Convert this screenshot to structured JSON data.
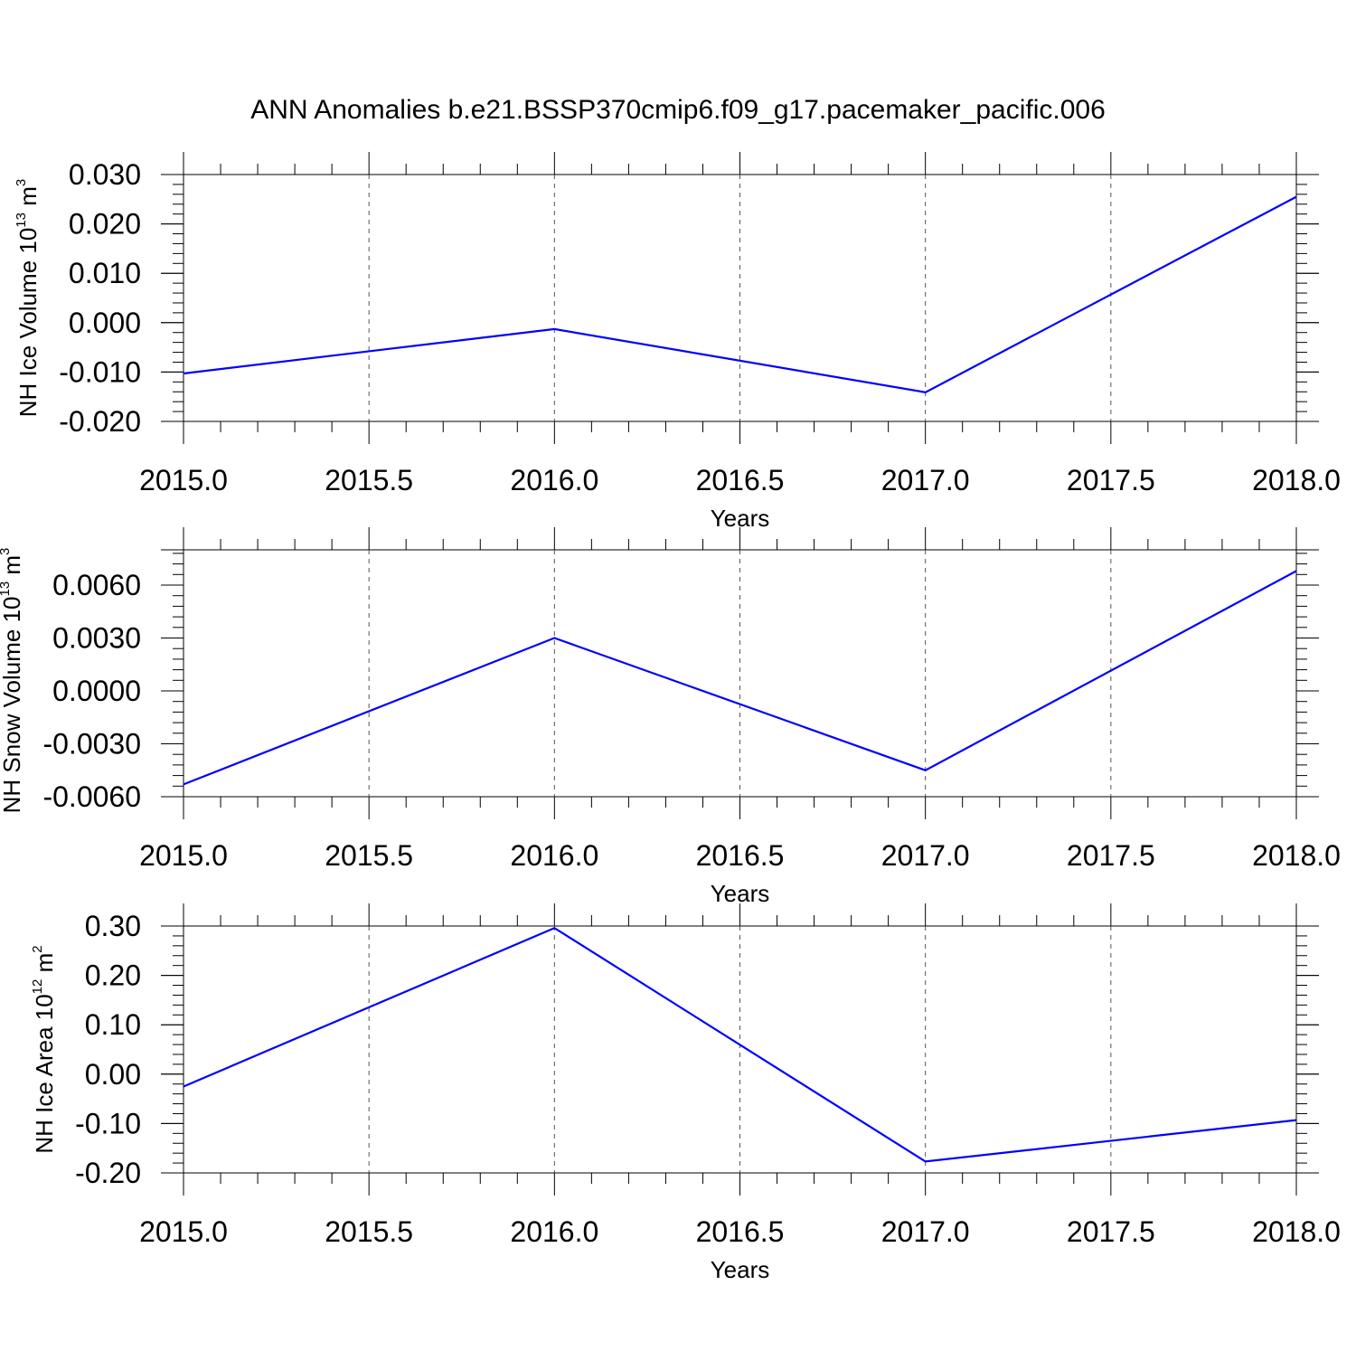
{
  "title": "ANN Anomalies b.e21.BSSP370cmip6.f09_g17.pacemaker_pacific.006",
  "chart_data": [
    {
      "type": "line",
      "xlabel": "Years",
      "ylabel": {
        "main": "NH Ice Volume 10",
        "sup": "13",
        "unit": " m",
        "unit_sup": "3"
      },
      "x": [
        2015.0,
        2016.0,
        2017.0,
        2018.0
      ],
      "series": [
        {
          "values": [
            -0.0103,
            -0.0013,
            -0.0141,
            0.0255
          ],
          "color": "#0000ff"
        }
      ],
      "xlim": [
        2015.0,
        2018.0
      ],
      "ylim": [
        -0.02,
        0.03
      ],
      "x_ticks": [
        "2015.0",
        "2015.5",
        "2016.0",
        "2016.5",
        "2017.0",
        "2017.5",
        "2018.0"
      ],
      "y_ticks": [
        "0.030",
        "0.020",
        "0.010",
        "0.000",
        "-0.010",
        "-0.020"
      ],
      "grid": "vertical dashed at major x ticks"
    },
    {
      "type": "line",
      "xlabel": "Years",
      "ylabel": {
        "main": "NH Snow Volume 10",
        "sup": "13",
        "unit": " m",
        "unit_sup": "3"
      },
      "x": [
        2015.0,
        2016.0,
        2017.0,
        2018.0
      ],
      "series": [
        {
          "values": [
            -0.0053,
            0.003,
            -0.0045,
            0.0068
          ],
          "color": "#0000ff"
        }
      ],
      "xlim": [
        2015.0,
        2018.0
      ],
      "ylim": [
        -0.006,
        0.008
      ],
      "x_ticks": [
        "2015.0",
        "2015.5",
        "2016.0",
        "2016.5",
        "2017.0",
        "2017.5",
        "2018.0"
      ],
      "y_ticks": [
        "0.0060",
        "0.0030",
        "0.0000",
        "-0.0030",
        "-0.0060"
      ],
      "grid": "vertical dashed at major x ticks"
    },
    {
      "type": "line",
      "xlabel": "Years",
      "ylabel": {
        "main": "NH Ice Area 10",
        "sup": "12",
        "unit": " m",
        "unit_sup": "2"
      },
      "x": [
        2015.0,
        2016.0,
        2017.0,
        2018.0
      ],
      "series": [
        {
          "values": [
            -0.025,
            0.296,
            -0.177,
            -0.093
          ],
          "color": "#0000ff"
        }
      ],
      "xlim": [
        2015.0,
        2018.0
      ],
      "ylim": [
        -0.2,
        0.3
      ],
      "x_ticks": [
        "2015.0",
        "2015.5",
        "2016.0",
        "2016.5",
        "2017.0",
        "2017.5",
        "2018.0"
      ],
      "y_ticks": [
        "0.30",
        "0.20",
        "0.10",
        "0.00",
        "-0.10",
        "-0.20"
      ],
      "grid": "vertical dashed at major x ticks"
    }
  ]
}
